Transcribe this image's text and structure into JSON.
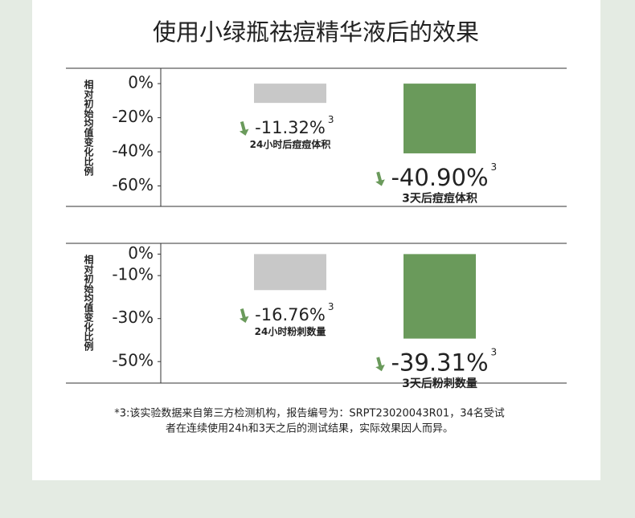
{
  "title": "使用小绿瓶祛痘精华液后的效果",
  "chart_data": [
    {
      "type": "bar",
      "y_label": "相对初始均值变化比例",
      "categories": [
        "24小时后痘痘体积",
        "3天后痘痘体积"
      ],
      "values": [
        -11.32,
        -40.9
      ],
      "value_labels": [
        "-11.32%",
        "-40.90%"
      ],
      "colors": [
        "#c8c8c8",
        "#6a9a5b"
      ],
      "note_mark": "3",
      "ylim": [
        9,
        -72
      ],
      "yticks": [
        {
          "value": 0,
          "label": "0%"
        },
        {
          "value": -20,
          "label": "-20%"
        },
        {
          "value": -40,
          "label": "-40%"
        },
        {
          "value": -60,
          "label": "-60%"
        }
      ]
    },
    {
      "type": "bar",
      "y_label": "相对初始均值变化比例",
      "categories": [
        "24小时粉刺数量",
        "3天后粉刺数量"
      ],
      "values": [
        -16.76,
        -39.31
      ],
      "value_labels": [
        "-16.76%",
        "-39.31%"
      ],
      "colors": [
        "#c8c8c8",
        "#6a9a5b"
      ],
      "note_mark": "3",
      "ylim": [
        5,
        -60
      ],
      "yticks": [
        {
          "value": 0,
          "label": "0%"
        },
        {
          "value": -10,
          "label": "-10%"
        },
        {
          "value": -30,
          "label": "-30%"
        },
        {
          "value": -50,
          "label": "-50%"
        }
      ]
    }
  ],
  "footnote": [
    "*3:该实验数据来自第三方检测机构，报告编号为：SRPT23020043R01，34名受试",
    "者在连续使用24h和3天之后的测试结果，实际效果因人而异。"
  ]
}
